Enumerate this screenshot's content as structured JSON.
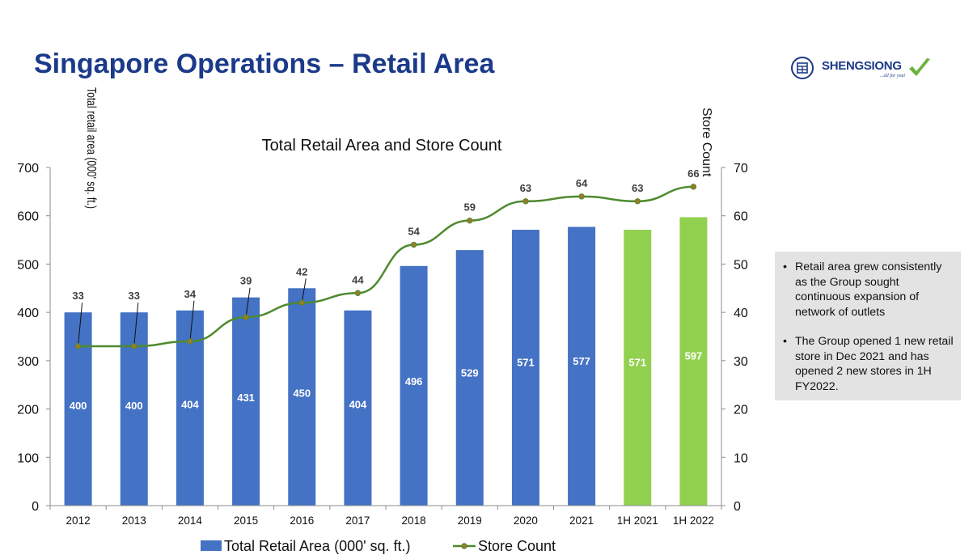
{
  "slide": {
    "title": "Singapore Operations – Retail Area"
  },
  "logo": {
    "brand": "SHENGSIONG",
    "tagline": "...all for you!"
  },
  "colors": {
    "title": "#1b3a8a",
    "bar_actual": "#4472c4",
    "bar_half_year": "#92d050",
    "line": "#4e8a2e",
    "marker": "#9a7b2b",
    "notes_bg": "#e3e3e3"
  },
  "chart_data": {
    "type": "bar",
    "title": "Total Retail Area and Store Count",
    "categories": [
      "2012",
      "2013",
      "2014",
      "2015",
      "2016",
      "2017",
      "2018",
      "2019",
      "2020",
      "2021",
      "1H 2021",
      "1H 2022"
    ],
    "series": [
      {
        "name": "Total Retail Area (000' sq. ft.)",
        "type": "bar",
        "axis": "left",
        "values": [
          400,
          400,
          404,
          431,
          450,
          404,
          496,
          529,
          571,
          577,
          571,
          597
        ],
        "colors": [
          "#4472c4",
          "#4472c4",
          "#4472c4",
          "#4472c4",
          "#4472c4",
          "#4472c4",
          "#4472c4",
          "#4472c4",
          "#4472c4",
          "#4472c4",
          "#92d050",
          "#92d050"
        ]
      },
      {
        "name": "Store Count",
        "type": "line",
        "axis": "right",
        "values": [
          33,
          33,
          34,
          39,
          42,
          44,
          54,
          59,
          63,
          64,
          63,
          66
        ]
      }
    ],
    "ylabel": "Total retail area (000' sq. ft.)",
    "y2label": "Store Count",
    "ylim": [
      0,
      700
    ],
    "y2lim": [
      0,
      70
    ],
    "yticks": [
      "0",
      "100",
      "200",
      "300",
      "400",
      "500",
      "600",
      "700"
    ],
    "y2ticks": [
      "0",
      "10",
      "20",
      "30",
      "40",
      "50",
      "60",
      "70"
    ],
    "grid": false,
    "legend_position": "bottom"
  },
  "notes": [
    "Retail area grew consistently as the Group sought continuous expansion of network of outlets",
    "The Group opened 1 new retail store in Dec 2021 and has opened 2 new stores in 1H FY2022."
  ]
}
